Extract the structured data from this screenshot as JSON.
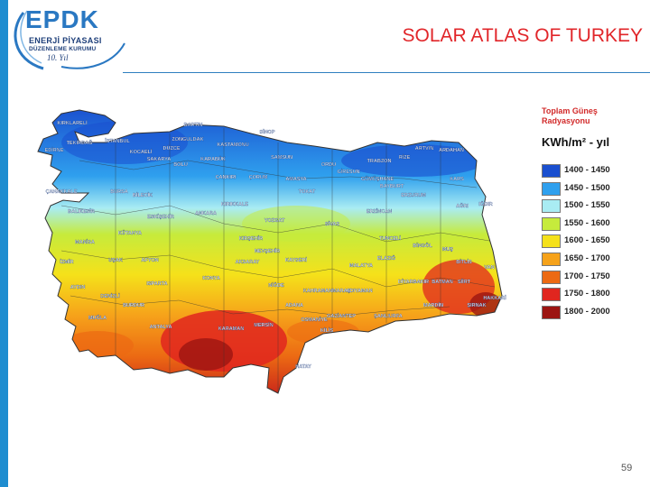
{
  "logo": {
    "mark": "EPDK",
    "line1": "ENERJİ PİYASASI",
    "line2": "DÜZENLEME KURUMU",
    "signature": "10. Yıl"
  },
  "title": "SOLAR ATLAS OF TURKEY",
  "page_number": "59",
  "legend": {
    "title": "Toplam Güneş Radyasyonu",
    "unit": "KWh/m² - yıl",
    "items": [
      {
        "label": "1400 - 1450",
        "color": "#1a4fcf"
      },
      {
        "label": "1450 - 1500",
        "color": "#2fa0ee"
      },
      {
        "label": "1500 - 1550",
        "color": "#a9ecf3"
      },
      {
        "label": "1550 - 1600",
        "color": "#c6eb3c"
      },
      {
        "label": "1600 - 1650",
        "color": "#f5e11a"
      },
      {
        "label": "1650 - 1700",
        "color": "#f6a21a"
      },
      {
        "label": "1700 - 1750",
        "color": "#ec6a13"
      },
      {
        "label": "1750 - 1800",
        "color": "#e0261f"
      },
      {
        "label": "1800 - 2000",
        "color": "#9c1512"
      }
    ]
  },
  "provinces": [
    "KIRKLARELİ",
    "EDİRNE",
    "TEKİRDAĞ",
    "İSTANBUL",
    "KOCAELİ",
    "SAKARYA",
    "DÜZCE",
    "BOLU",
    "ZONGULDAK",
    "BARTIN",
    "KASTAMONU",
    "KARABÜK",
    "SİNOP",
    "SAMSUN",
    "ORDU",
    "GİRESUN",
    "TRABZON",
    "RİZE",
    "ARTVİN",
    "ARDAHAN",
    "KARS",
    "IĞDIR",
    "AĞRI",
    "ERZURUM",
    "BAYBURT",
    "GÜMÜŞHANE",
    "AMASYA",
    "TOKAT",
    "ÇORUM",
    "ÇANKIRI",
    "ÇANAKKALE",
    "BALIKESİR",
    "BURSA",
    "BİLECİK",
    "ESKİŞEHİR",
    "ANKARA",
    "KIRIKKALE",
    "YOZGAT",
    "SİVAS",
    "ERZİNCAN",
    "TUNCELİ",
    "BİNGÖL",
    "MUŞ",
    "BİTLİS",
    "VAN",
    "HAKKARİ",
    "MANİSA",
    "İZMİR",
    "AYDIN",
    "MUĞLA",
    "DENİZLİ",
    "UŞAK",
    "KÜTAHYA",
    "AFYON",
    "ISPARTA",
    "BURDUR",
    "ANTALYA",
    "KONYA",
    "KARAMAN",
    "AKSARAY",
    "NEVŞEHİR",
    "KIRŞEHİR",
    "KAYSERİ",
    "NİĞDE",
    "MERSİN",
    "ADANA",
    "OSMANİYE",
    "HATAY",
    "KAHRAMANMARAŞ",
    "MALATYA",
    "ADIYAMAN",
    "ELAZIĞ",
    "DİYARBAKIR",
    "BATMAN",
    "SİİRT",
    "MARDİN",
    "ŞANLIURFA",
    "GAZİANTEP",
    "KİLİS",
    "ŞIRNAK"
  ]
}
